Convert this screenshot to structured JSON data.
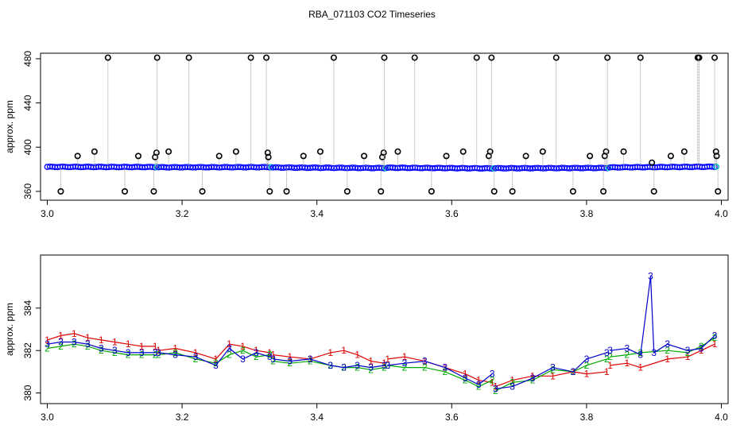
{
  "title": "RBA_071103  CO2 Timeseries",
  "chart_data": [
    {
      "type": "scatter",
      "title": "",
      "xlabel": "",
      "ylabel": "approx. ppm",
      "xlim": [
        2.99,
        4.01
      ],
      "ylim": [
        352,
        485
      ],
      "x_ticks": [
        "3.0",
        "3.2",
        "3.4",
        "3.6",
        "3.8",
        "4.0"
      ],
      "y_ticks": [
        "360",
        "400",
        "440",
        "480"
      ],
      "grid": false,
      "colors": {
        "baseline": "#0000ff",
        "outlier": "#000000",
        "drop_line": "#999999",
        "highlight": "#00c8c8"
      },
      "baseline_segments": [
        {
          "x": [
            3.0,
            3.16
          ],
          "y": [
            382.2,
            382.0
          ]
        },
        {
          "x": [
            3.165,
            3.33
          ],
          "y": [
            381.8,
            381.9
          ]
        },
        {
          "x": [
            3.335,
            3.5
          ],
          "y": [
            381.6,
            381.1
          ]
        },
        {
          "x": [
            3.505,
            3.66
          ],
          "y": [
            381.4,
            380.8
          ]
        },
        {
          "x": [
            3.665,
            3.83
          ],
          "y": [
            380.9,
            381.2
          ]
        },
        {
          "x": [
            3.835,
            3.99
          ],
          "y": [
            381.7,
            382.3
          ]
        }
      ],
      "outliers": [
        {
          "x": 3.02,
          "y": 360
        },
        {
          "x": 3.045,
          "y": 392
        },
        {
          "x": 3.07,
          "y": 396
        },
        {
          "x": 3.09,
          "y": 481
        },
        {
          "x": 3.115,
          "y": 360
        },
        {
          "x": 3.135,
          "y": 392
        },
        {
          "x": 3.158,
          "y": 360
        },
        {
          "x": 3.16,
          "y": 391
        },
        {
          "x": 3.162,
          "y": 395
        },
        {
          "x": 3.163,
          "y": 481
        },
        {
          "x": 3.18,
          "y": 396
        },
        {
          "x": 3.21,
          "y": 481
        },
        {
          "x": 3.23,
          "y": 360
        },
        {
          "x": 3.255,
          "y": 392
        },
        {
          "x": 3.28,
          "y": 396
        },
        {
          "x": 3.302,
          "y": 481
        },
        {
          "x": 3.325,
          "y": 481
        },
        {
          "x": 3.327,
          "y": 395
        },
        {
          "x": 3.328,
          "y": 391
        },
        {
          "x": 3.33,
          "y": 360
        },
        {
          "x": 3.355,
          "y": 360
        },
        {
          "x": 3.38,
          "y": 392
        },
        {
          "x": 3.405,
          "y": 396
        },
        {
          "x": 3.425,
          "y": 481
        },
        {
          "x": 3.445,
          "y": 360
        },
        {
          "x": 3.47,
          "y": 392
        },
        {
          "x": 3.495,
          "y": 360
        },
        {
          "x": 3.497,
          "y": 391
        },
        {
          "x": 3.499,
          "y": 395
        },
        {
          "x": 3.5,
          "y": 481
        },
        {
          "x": 3.52,
          "y": 396
        },
        {
          "x": 3.545,
          "y": 481
        },
        {
          "x": 3.57,
          "y": 360
        },
        {
          "x": 3.592,
          "y": 392
        },
        {
          "x": 3.617,
          "y": 396
        },
        {
          "x": 3.637,
          "y": 481
        },
        {
          "x": 3.655,
          "y": 392
        },
        {
          "x": 3.657,
          "y": 396
        },
        {
          "x": 3.659,
          "y": 481
        },
        {
          "x": 3.663,
          "y": 360
        },
        {
          "x": 3.69,
          "y": 360
        },
        {
          "x": 3.71,
          "y": 392
        },
        {
          "x": 3.735,
          "y": 396
        },
        {
          "x": 3.755,
          "y": 481
        },
        {
          "x": 3.78,
          "y": 360
        },
        {
          "x": 3.805,
          "y": 392
        },
        {
          "x": 3.825,
          "y": 360
        },
        {
          "x": 3.827,
          "y": 392
        },
        {
          "x": 3.829,
          "y": 396
        },
        {
          "x": 3.831,
          "y": 481
        },
        {
          "x": 3.855,
          "y": 396
        },
        {
          "x": 3.88,
          "y": 481
        },
        {
          "x": 3.897,
          "y": 386
        },
        {
          "x": 3.9,
          "y": 360
        },
        {
          "x": 3.925,
          "y": 392
        },
        {
          "x": 3.945,
          "y": 396
        },
        {
          "x": 3.965,
          "y": 481
        },
        {
          "x": 3.967,
          "y": 481
        },
        {
          "x": 3.99,
          "y": 481
        },
        {
          "x": 3.992,
          "y": 396
        },
        {
          "x": 3.993,
          "y": 392
        },
        {
          "x": 3.995,
          "y": 360
        }
      ]
    },
    {
      "type": "line",
      "title": "",
      "xlabel": "",
      "ylabel": "approx. ppm",
      "xlim": [
        2.99,
        4.01
      ],
      "ylim": [
        379.5,
        386.5
      ],
      "x_ticks": [
        "3.0",
        "3.2",
        "3.4",
        "3.6",
        "3.8",
        "4.0"
      ],
      "y_ticks": [
        "380",
        "382",
        "384"
      ],
      "grid": false,
      "series": [
        {
          "label": "1",
          "color": "#dd0000",
          "segments": [
            {
              "x": [
                3.0,
                3.02,
                3.04,
                3.06,
                3.08,
                3.1,
                3.12,
                3.14,
                3.16
              ],
              "y": [
                382.5,
                382.7,
                382.8,
                382.6,
                382.5,
                382.4,
                382.3,
                382.2,
                382.2
              ]
            },
            {
              "x": [
                3.165,
                3.19,
                3.22,
                3.25,
                3.27,
                3.29,
                3.31,
                3.33
              ],
              "y": [
                382.0,
                382.1,
                381.9,
                381.6,
                382.3,
                382.2,
                382.0,
                381.9
              ]
            },
            {
              "x": [
                3.335,
                3.36,
                3.39,
                3.42,
                3.44,
                3.46,
                3.48,
                3.5
              ],
              "y": [
                381.8,
                381.7,
                381.6,
                381.9,
                382.0,
                381.8,
                381.5,
                381.4
              ]
            },
            {
              "x": [
                3.505,
                3.53,
                3.56,
                3.59,
                3.62,
                3.64,
                3.66
              ],
              "y": [
                381.6,
                381.7,
                381.5,
                381.2,
                380.9,
                380.6,
                380.5
              ]
            },
            {
              "x": [
                3.665,
                3.69,
                3.72,
                3.75,
                3.78,
                3.8,
                3.83
              ],
              "y": [
                380.3,
                380.6,
                380.8,
                380.8,
                381.0,
                380.9,
                381.0
              ]
            },
            {
              "x": [
                3.835,
                3.86,
                3.88,
                3.92,
                3.95,
                3.97,
                3.99
              ],
              "y": [
                381.3,
                381.4,
                381.2,
                381.6,
                381.7,
                382.0,
                382.3
              ]
            }
          ]
        },
        {
          "label": "2",
          "color": "#00aa00",
          "segments": [
            {
              "x": [
                3.0,
                3.02,
                3.04,
                3.06,
                3.08,
                3.1,
                3.12,
                3.14,
                3.16
              ],
              "y": [
                382.1,
                382.2,
                382.3,
                382.2,
                382.0,
                381.9,
                381.8,
                381.8,
                381.8
              ]
            },
            {
              "x": [
                3.165,
                3.19,
                3.22,
                3.25,
                3.27,
                3.29,
                3.31,
                3.33
              ],
              "y": [
                381.8,
                381.9,
                381.6,
                381.4,
                381.8,
                382.0,
                381.7,
                381.8
              ]
            },
            {
              "x": [
                3.335,
                3.36,
                3.39,
                3.42,
                3.44,
                3.46,
                3.48,
                3.5
              ],
              "y": [
                381.5,
                381.4,
                381.5,
                381.3,
                381.2,
                381.2,
                381.1,
                381.2
              ]
            },
            {
              "x": [
                3.505,
                3.53,
                3.56,
                3.59,
                3.62,
                3.64,
                3.66
              ],
              "y": [
                381.3,
                381.2,
                381.2,
                381.0,
                380.6,
                380.3,
                380.6
              ]
            },
            {
              "x": [
                3.665,
                3.69,
                3.72,
                3.75,
                3.78,
                3.8,
                3.83
              ],
              "y": [
                380.1,
                380.5,
                380.6,
                381.1,
                381.0,
                381.3,
                381.6
              ]
            },
            {
              "x": [
                3.835,
                3.86,
                3.88,
                3.92,
                3.95,
                3.97,
                3.99
              ],
              "y": [
                381.7,
                381.8,
                381.9,
                382.0,
                381.9,
                382.2,
                382.6
              ]
            }
          ]
        },
        {
          "label": "3",
          "color": "#0000cc",
          "segments": [
            {
              "x": [
                3.0,
                3.02,
                3.04,
                3.06,
                3.08,
                3.1,
                3.12,
                3.14,
                3.16
              ],
              "y": [
                382.3,
                382.4,
                382.4,
                382.3,
                382.1,
                382.0,
                381.9,
                381.9,
                381.9
              ]
            },
            {
              "x": [
                3.165,
                3.19,
                3.22,
                3.25,
                3.27,
                3.29,
                3.31,
                3.33
              ],
              "y": [
                381.9,
                381.8,
                381.7,
                381.3,
                382.1,
                381.6,
                381.9,
                381.7
              ]
            },
            {
              "x": [
                3.335,
                3.36,
                3.39,
                3.42,
                3.44,
                3.46,
                3.48,
                3.5
              ],
              "y": [
                381.6,
                381.5,
                381.6,
                381.3,
                381.2,
                381.3,
                381.2,
                381.3
              ]
            },
            {
              "x": [
                3.505,
                3.53,
                3.56,
                3.59,
                3.62,
                3.64,
                3.66
              ],
              "y": [
                381.3,
                381.4,
                381.5,
                381.2,
                380.7,
                380.4,
                380.9
              ]
            },
            {
              "x": [
                3.665,
                3.69,
                3.72,
                3.75,
                3.78,
                3.8,
                3.83
              ],
              "y": [
                380.2,
                380.3,
                380.7,
                381.2,
                381.0,
                381.6,
                381.9
              ]
            },
            {
              "x": [
                3.835,
                3.86,
                3.88,
                3.895,
                3.9,
                3.92,
                3.95,
                3.97,
                3.99
              ],
              "y": [
                382.0,
                382.1,
                381.8,
                385.5,
                381.9,
                382.3,
                382.0,
                382.1,
                382.7
              ]
            }
          ]
        }
      ]
    }
  ]
}
